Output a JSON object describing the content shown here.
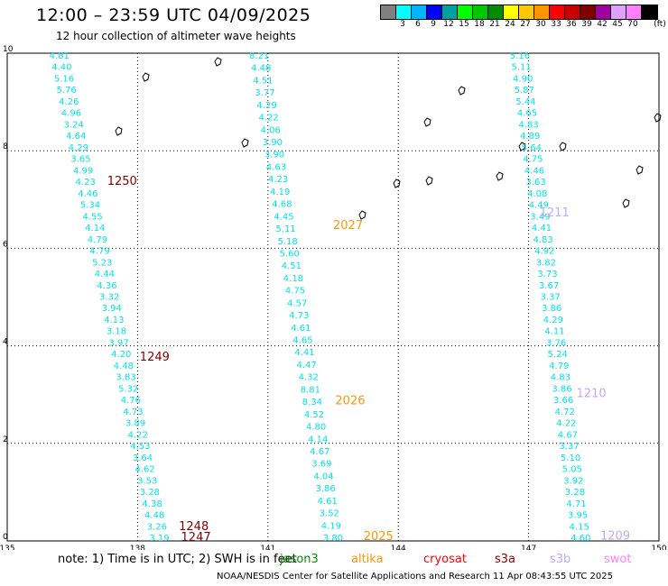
{
  "header": {
    "title": "12:00 – 23:59 UTC 04/09/2025",
    "subtitle": "12 hour collection of altimeter wave heights"
  },
  "color_scale": {
    "unit": "(ft)",
    "swatches": [
      {
        "label": "",
        "color": "#808080"
      },
      {
        "label": "3",
        "color": "#00ffff"
      },
      {
        "label": "6",
        "color": "#00b4ff"
      },
      {
        "label": "9",
        "color": "#0000ff"
      },
      {
        "label": "12",
        "color": "#00a0a0"
      },
      {
        "label": "15",
        "color": "#00ff00"
      },
      {
        "label": "18",
        "color": "#00c800"
      },
      {
        "label": "21",
        "color": "#008c00"
      },
      {
        "label": "24",
        "color": "#ffff00"
      },
      {
        "label": "27",
        "color": "#ffc800"
      },
      {
        "label": "30",
        "color": "#ff9600"
      },
      {
        "label": "33",
        "color": "#ff0000"
      },
      {
        "label": "36",
        "color": "#c80000"
      },
      {
        "label": "39",
        "color": "#800000"
      },
      {
        "label": "42",
        "color": "#a000a0"
      },
      {
        "label": "45",
        "color": "#e0a0ff"
      },
      {
        "label": "70",
        "color": "#ff80ff"
      },
      {
        "label": "",
        "color": "#000000"
      }
    ]
  },
  "map": {
    "lon_range": [
      135,
      150
    ],
    "lat_range": [
      0,
      10
    ],
    "lon_ticks": [
      "135",
      "138",
      "141",
      "144",
      "147",
      "150"
    ],
    "lat_ticks": [
      "0",
      "2",
      "4",
      "6",
      "8",
      "10"
    ],
    "measurement_color": "#00e5e5",
    "tracks": [
      {
        "lon_start": 136.2,
        "lon_end": 138.5,
        "values": [
          "4.81",
          "4.40",
          "5.16",
          "5.76",
          "4.26",
          "4.96",
          "3.24",
          "4.64",
          "4.29",
          "3.65",
          "4.99",
          "4.23",
          "4.46",
          "5.34",
          "4.55",
          "4.14",
          "4.79",
          "4.79",
          "5.23",
          "4.44",
          "4.36",
          "3.32",
          "3.94",
          "4.13",
          "3.18",
          "3.97",
          "4.20",
          "4.48",
          "3.83",
          "5.32",
          "4.76",
          "4.73",
          "3.89",
          "4.22",
          "4.53",
          "3.64",
          "4.62",
          "3.53",
          "3.28",
          "4.38",
          "4.48",
          "3.26",
          "3.19"
        ]
      },
      {
        "lon_start": 140.8,
        "lon_end": 142.5,
        "values": [
          "8.21",
          "4.48",
          "4.51",
          "3.77",
          "4.29",
          "4.22",
          "4.06",
          "3.90",
          "3.90",
          "4.63",
          "4.23",
          "4.19",
          "4.68",
          "4.45",
          "5.11",
          "5.18",
          "5.60",
          "4.51",
          "4.18",
          "4.75",
          "4.57",
          "4.73",
          "4.61",
          "4.65",
          "4.41",
          "4.47",
          "4.32",
          "8.81",
          "8.34",
          "4.52",
          "4.80",
          "4.14",
          "4.67",
          "3.69",
          "4.04",
          "3.86",
          "4.61",
          "3.52",
          "4.19",
          "3.80"
        ]
      },
      {
        "lon_start": 146.8,
        "lon_end": 148.2,
        "values": [
          "5.16",
          "5.11",
          "4.90",
          "5.87",
          "5.44",
          "4.65",
          "4.83",
          "4.89",
          "5.64",
          "4.75",
          "4.46",
          "3.63",
          "4.08",
          "4.49",
          "3.49",
          "4.41",
          "4.83",
          "4.92",
          "3.82",
          "3.73",
          "3.67",
          "3.37",
          "3.86",
          "4.29",
          "4.11",
          "3.76",
          "5.24",
          "4.79",
          "4.83",
          "3.86",
          "3.66",
          "4.72",
          "4.22",
          "4.67",
          "3.37",
          "5.10",
          "5.05",
          "3.92",
          "3.28",
          "4.71",
          "3.95",
          "4.15",
          "4.60"
        ]
      }
    ],
    "pass_labels": [
      {
        "text": "1250",
        "lon": 137.3,
        "lat": 7.3,
        "color": "#800000"
      },
      {
        "text": "1249",
        "lon": 138.05,
        "lat": 3.7,
        "color": "#800000"
      },
      {
        "text": "1248",
        "lon": 138.95,
        "lat": 0.22,
        "color": "#800000"
      },
      {
        "text": "1247",
        "lon": 139.0,
        "lat": 0.0,
        "color": "#800000"
      },
      {
        "text": "2027",
        "lon": 142.5,
        "lat": 6.4,
        "color": "#ff9600"
      },
      {
        "text": "2026",
        "lon": 142.55,
        "lat": 2.8,
        "color": "#ff9600"
      },
      {
        "text": "2025",
        "lon": 143.2,
        "lat": 0.02,
        "color": "#ff9600"
      },
      {
        "text": "1211",
        "lon": 147.25,
        "lat": 6.65,
        "color": "#c3a8ff"
      },
      {
        "text": "1210",
        "lon": 148.1,
        "lat": 2.95,
        "color": "#c3a8ff"
      },
      {
        "text": "1209",
        "lon": 148.65,
        "lat": 0.03,
        "color": "#c3a8ff"
      }
    ]
  },
  "footer": {
    "note": "note:  1) Time is in UTC; 2) SWH is in feet",
    "satellites": [
      {
        "name": "jason3",
        "color": "#008c00"
      },
      {
        "name": "altika",
        "color": "#ff9600"
      },
      {
        "name": "cryosat",
        "color": "#ff0000"
      },
      {
        "name": "s3a",
        "color": "#800000"
      },
      {
        "name": "s3b",
        "color": "#c3a8ff"
      },
      {
        "name": "swot",
        "color": "#ff80ff"
      }
    ],
    "credit": "NOAA/NESDIS Center for Satellite Applications and Research    11 Apr 08:43:55 UTC 2025"
  }
}
